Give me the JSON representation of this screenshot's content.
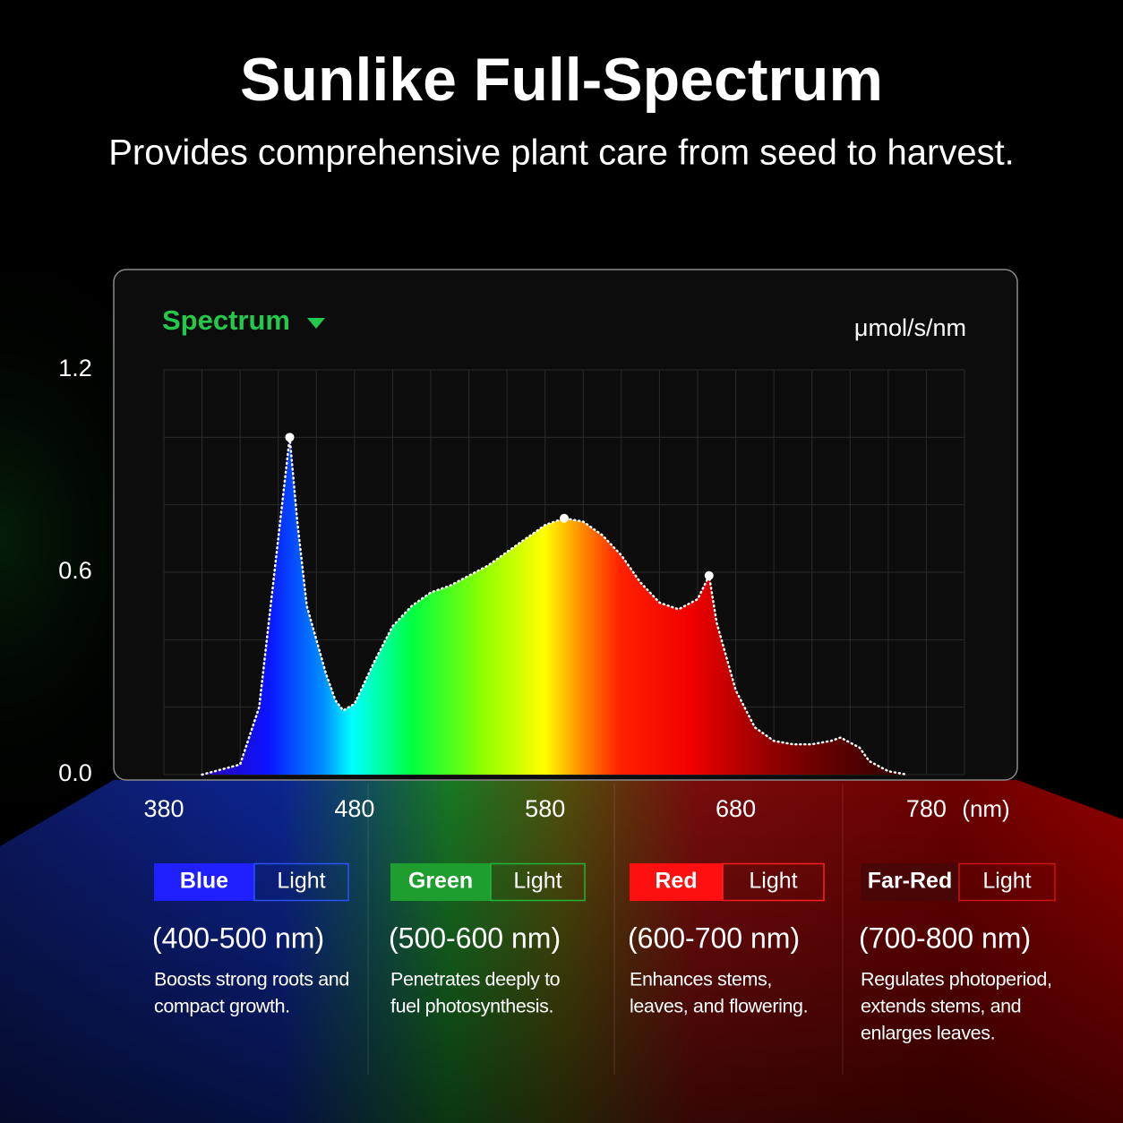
{
  "header": {
    "title": "Sunlike Full-Spectrum",
    "subtitle": "Provides comprehensive plant care from seed to harvest."
  },
  "chart_data": {
    "type": "area",
    "selector_label": "Spectrum",
    "y_unit": "μmol/s/nm",
    "x_unit": "(nm)",
    "x": [
      400,
      420,
      430,
      436,
      440,
      446,
      450,
      455,
      460,
      465,
      470,
      474,
      480,
      490,
      500,
      510,
      520,
      530,
      540,
      550,
      560,
      570,
      580,
      590,
      600,
      610,
      620,
      630,
      640,
      650,
      660,
      666,
      670,
      680,
      690,
      700,
      710,
      720,
      730,
      735,
      745,
      750,
      760,
      770
    ],
    "values": [
      0.0,
      0.03,
      0.2,
      0.5,
      0.7,
      1.0,
      0.75,
      0.5,
      0.4,
      0.3,
      0.22,
      0.19,
      0.21,
      0.33,
      0.44,
      0.5,
      0.54,
      0.56,
      0.59,
      0.62,
      0.66,
      0.7,
      0.74,
      0.76,
      0.75,
      0.71,
      0.65,
      0.57,
      0.51,
      0.49,
      0.52,
      0.59,
      0.45,
      0.25,
      0.14,
      0.1,
      0.09,
      0.09,
      0.1,
      0.11,
      0.08,
      0.04,
      0.01,
      0.0
    ],
    "xlim": [
      380,
      800
    ],
    "xticks": [
      380,
      480,
      580,
      680,
      780
    ],
    "ylim": [
      0,
      1.2
    ],
    "yticks": [
      {
        "value": 0,
        "label": "0.0"
      },
      0.6,
      1.2
    ],
    "xgrid": [
      380,
      400,
      420,
      440,
      460,
      480,
      500,
      520,
      540,
      560,
      580,
      600,
      620,
      640,
      660,
      680,
      700,
      720,
      740,
      760,
      780,
      800
    ],
    "ygrid": [
      0,
      0.2,
      0.4,
      0.6,
      0.8,
      1.0,
      1.2
    ],
    "grid": true,
    "line_color": "#ffffff"
  },
  "bands": [
    {
      "name": "Blue",
      "suffix": "Light",
      "range": "(400-500 nm)",
      "color": "#1f1fff",
      "border": "#2a50ff",
      "lines": [
        "Boosts strong roots and",
        "compact growth."
      ]
    },
    {
      "name": "Green",
      "suffix": "Light",
      "range": "(500-600 nm)",
      "color": "#1e9e2e",
      "border": "#22b53a",
      "lines": [
        "Penetrates deeply to",
        "fuel photosynthesis."
      ]
    },
    {
      "name": "Red",
      "suffix": "Light",
      "range": "(600-700 nm)",
      "color": "#ff1010",
      "border": "#ff2020",
      "lines": [
        "Enhances stems,",
        "leaves, and flowering."
      ]
    },
    {
      "name": "Far-Red",
      "suffix": "Light",
      "range": "(700-800 nm)",
      "color": "#4a0606",
      "border": "#cc1414",
      "lines": [
        "Regulates photoperiod,",
        "extends stems, and",
        "enlarges leaves."
      ]
    }
  ]
}
